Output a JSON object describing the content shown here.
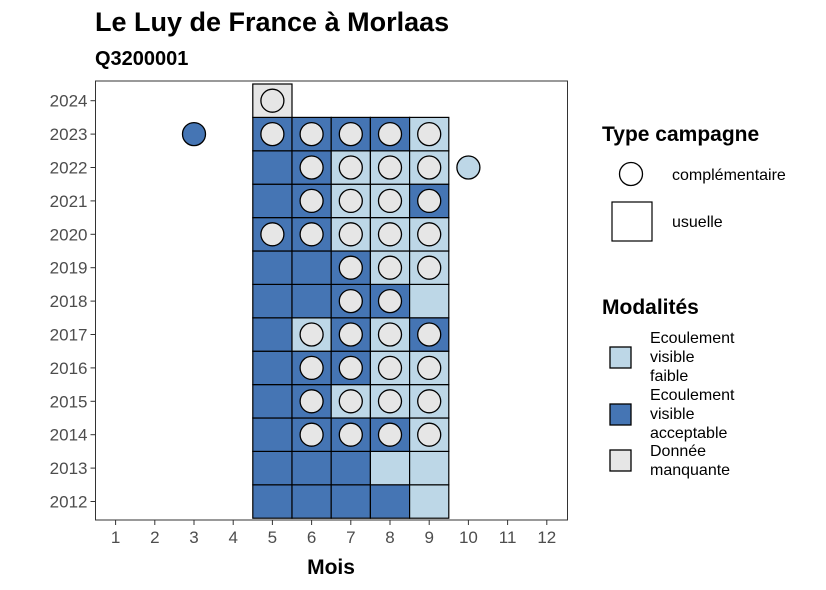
{
  "chart_data": {
    "type": "heatmap",
    "title": "Le Luy de France à Morlaas",
    "subtitle": "Q3200001",
    "xlabel": "Mois",
    "ylabel": "",
    "x_ticks": [
      1,
      2,
      3,
      4,
      5,
      6,
      7,
      8,
      9,
      10,
      11,
      12
    ],
    "y_ticks": [
      2012,
      2013,
      2014,
      2015,
      2016,
      2017,
      2018,
      2019,
      2020,
      2021,
      2022,
      2023,
      2024
    ],
    "xlim": [
      0.5,
      12.5
    ],
    "ylim": [
      2011.5,
      2024.5
    ],
    "colors": {
      "faible": "#bdd7e7",
      "acceptable": "#4575b4",
      "manquante": "#e6e6e6"
    },
    "usuelle_tiles": [
      {
        "month": 5,
        "year": 2012,
        "m": "acceptable"
      },
      {
        "month": 6,
        "year": 2012,
        "m": "acceptable"
      },
      {
        "month": 7,
        "year": 2012,
        "m": "acceptable"
      },
      {
        "month": 8,
        "year": 2012,
        "m": "acceptable"
      },
      {
        "month": 9,
        "year": 2012,
        "m": "faible"
      },
      {
        "month": 5,
        "year": 2013,
        "m": "acceptable"
      },
      {
        "month": 6,
        "year": 2013,
        "m": "acceptable"
      },
      {
        "month": 7,
        "year": 2013,
        "m": "acceptable"
      },
      {
        "month": 8,
        "year": 2013,
        "m": "faible"
      },
      {
        "month": 9,
        "year": 2013,
        "m": "faible"
      },
      {
        "month": 5,
        "year": 2014,
        "m": "acceptable"
      },
      {
        "month": 6,
        "year": 2014,
        "m": "acceptable"
      },
      {
        "month": 7,
        "year": 2014,
        "m": "acceptable"
      },
      {
        "month": 8,
        "year": 2014,
        "m": "acceptable"
      },
      {
        "month": 9,
        "year": 2014,
        "m": "faible"
      },
      {
        "month": 5,
        "year": 2015,
        "m": "acceptable"
      },
      {
        "month": 6,
        "year": 2015,
        "m": "acceptable"
      },
      {
        "month": 7,
        "year": 2015,
        "m": "faible"
      },
      {
        "month": 8,
        "year": 2015,
        "m": "faible"
      },
      {
        "month": 9,
        "year": 2015,
        "m": "faible"
      },
      {
        "month": 5,
        "year": 2016,
        "m": "acceptable"
      },
      {
        "month": 6,
        "year": 2016,
        "m": "acceptable"
      },
      {
        "month": 7,
        "year": 2016,
        "m": "acceptable"
      },
      {
        "month": 8,
        "year": 2016,
        "m": "faible"
      },
      {
        "month": 9,
        "year": 2016,
        "m": "faible"
      },
      {
        "month": 5,
        "year": 2017,
        "m": "acceptable"
      },
      {
        "month": 6,
        "year": 2017,
        "m": "faible"
      },
      {
        "month": 7,
        "year": 2017,
        "m": "acceptable"
      },
      {
        "month": 8,
        "year": 2017,
        "m": "faible"
      },
      {
        "month": 9,
        "year": 2017,
        "m": "acceptable"
      },
      {
        "month": 5,
        "year": 2018,
        "m": "acceptable"
      },
      {
        "month": 6,
        "year": 2018,
        "m": "acceptable"
      },
      {
        "month": 7,
        "year": 2018,
        "m": "acceptable"
      },
      {
        "month": 8,
        "year": 2018,
        "m": "acceptable"
      },
      {
        "month": 9,
        "year": 2018,
        "m": "faible"
      },
      {
        "month": 5,
        "year": 2019,
        "m": "acceptable"
      },
      {
        "month": 6,
        "year": 2019,
        "m": "acceptable"
      },
      {
        "month": 7,
        "year": 2019,
        "m": "acceptable"
      },
      {
        "month": 8,
        "year": 2019,
        "m": "faible"
      },
      {
        "month": 9,
        "year": 2019,
        "m": "faible"
      },
      {
        "month": 5,
        "year": 2020,
        "m": "acceptable"
      },
      {
        "month": 6,
        "year": 2020,
        "m": "acceptable"
      },
      {
        "month": 7,
        "year": 2020,
        "m": "faible"
      },
      {
        "month": 8,
        "year": 2020,
        "m": "faible"
      },
      {
        "month": 9,
        "year": 2020,
        "m": "faible"
      },
      {
        "month": 5,
        "year": 2021,
        "m": "acceptable"
      },
      {
        "month": 6,
        "year": 2021,
        "m": "acceptable"
      },
      {
        "month": 7,
        "year": 2021,
        "m": "faible"
      },
      {
        "month": 8,
        "year": 2021,
        "m": "faible"
      },
      {
        "month": 9,
        "year": 2021,
        "m": "acceptable"
      },
      {
        "month": 5,
        "year": 2022,
        "m": "acceptable"
      },
      {
        "month": 6,
        "year": 2022,
        "m": "acceptable"
      },
      {
        "month": 7,
        "year": 2022,
        "m": "faible"
      },
      {
        "month": 8,
        "year": 2022,
        "m": "faible"
      },
      {
        "month": 9,
        "year": 2022,
        "m": "faible"
      },
      {
        "month": 5,
        "year": 2023,
        "m": "acceptable"
      },
      {
        "month": 6,
        "year": 2023,
        "m": "acceptable"
      },
      {
        "month": 7,
        "year": 2023,
        "m": "acceptable"
      },
      {
        "month": 8,
        "year": 2023,
        "m": "acceptable"
      },
      {
        "month": 9,
        "year": 2023,
        "m": "faible"
      },
      {
        "month": 5,
        "year": 2024,
        "m": "manquante"
      }
    ],
    "complementaire_points": [
      {
        "month": 6,
        "year": 2014,
        "m": "manquante"
      },
      {
        "month": 7,
        "year": 2014,
        "m": "manquante"
      },
      {
        "month": 8,
        "year": 2014,
        "m": "manquante"
      },
      {
        "month": 9,
        "year": 2014,
        "m": "manquante"
      },
      {
        "month": 6,
        "year": 2015,
        "m": "manquante"
      },
      {
        "month": 7,
        "year": 2015,
        "m": "manquante"
      },
      {
        "month": 8,
        "year": 2015,
        "m": "manquante"
      },
      {
        "month": 9,
        "year": 2015,
        "m": "manquante"
      },
      {
        "month": 6,
        "year": 2016,
        "m": "manquante"
      },
      {
        "month": 7,
        "year": 2016,
        "m": "manquante"
      },
      {
        "month": 8,
        "year": 2016,
        "m": "manquante"
      },
      {
        "month": 9,
        "year": 2016,
        "m": "manquante"
      },
      {
        "month": 6,
        "year": 2017,
        "m": "manquante"
      },
      {
        "month": 7,
        "year": 2017,
        "m": "manquante"
      },
      {
        "month": 8,
        "year": 2017,
        "m": "manquante"
      },
      {
        "month": 9,
        "year": 2017,
        "m": "manquante"
      },
      {
        "month": 7,
        "year": 2018,
        "m": "manquante"
      },
      {
        "month": 8,
        "year": 2018,
        "m": "manquante"
      },
      {
        "month": 7,
        "year": 2019,
        "m": "manquante"
      },
      {
        "month": 8,
        "year": 2019,
        "m": "manquante"
      },
      {
        "month": 9,
        "year": 2019,
        "m": "manquante"
      },
      {
        "month": 5,
        "year": 2020,
        "m": "manquante"
      },
      {
        "month": 6,
        "year": 2020,
        "m": "manquante"
      },
      {
        "month": 7,
        "year": 2020,
        "m": "manquante"
      },
      {
        "month": 8,
        "year": 2020,
        "m": "manquante"
      },
      {
        "month": 9,
        "year": 2020,
        "m": "manquante"
      },
      {
        "month": 6,
        "year": 2021,
        "m": "manquante"
      },
      {
        "month": 7,
        "year": 2021,
        "m": "manquante"
      },
      {
        "month": 8,
        "year": 2021,
        "m": "manquante"
      },
      {
        "month": 9,
        "year": 2021,
        "m": "manquante"
      },
      {
        "month": 6,
        "year": 2022,
        "m": "manquante"
      },
      {
        "month": 7,
        "year": 2022,
        "m": "manquante"
      },
      {
        "month": 8,
        "year": 2022,
        "m": "manquante"
      },
      {
        "month": 9,
        "year": 2022,
        "m": "manquante"
      },
      {
        "month": 10,
        "year": 2022,
        "m": "faible"
      },
      {
        "month": 3,
        "year": 2023,
        "m": "acceptable"
      },
      {
        "month": 5,
        "year": 2023,
        "m": "manquante"
      },
      {
        "month": 6,
        "year": 2023,
        "m": "manquante"
      },
      {
        "month": 7,
        "year": 2023,
        "m": "manquante"
      },
      {
        "month": 8,
        "year": 2023,
        "m": "manquante"
      },
      {
        "month": 9,
        "year": 2023,
        "m": "manquante"
      },
      {
        "month": 5,
        "year": 2024,
        "m": "manquante"
      }
    ],
    "legend": {
      "placement": "right",
      "type_title": "Type campagne",
      "type_items": [
        {
          "key": "complementaire",
          "label": "complémentaire"
        },
        {
          "key": "usuelle",
          "label": "usuelle"
        }
      ],
      "modalites_title": "Modalités",
      "modalites_items": [
        {
          "key": "faible",
          "lines": [
            "Ecoulement",
            "visible",
            "faible"
          ]
        },
        {
          "key": "acceptable",
          "lines": [
            "Ecoulement",
            "visible",
            "acceptable"
          ]
        },
        {
          "key": "manquante",
          "lines": [
            "Donnée",
            "manquante"
          ]
        }
      ]
    }
  }
}
